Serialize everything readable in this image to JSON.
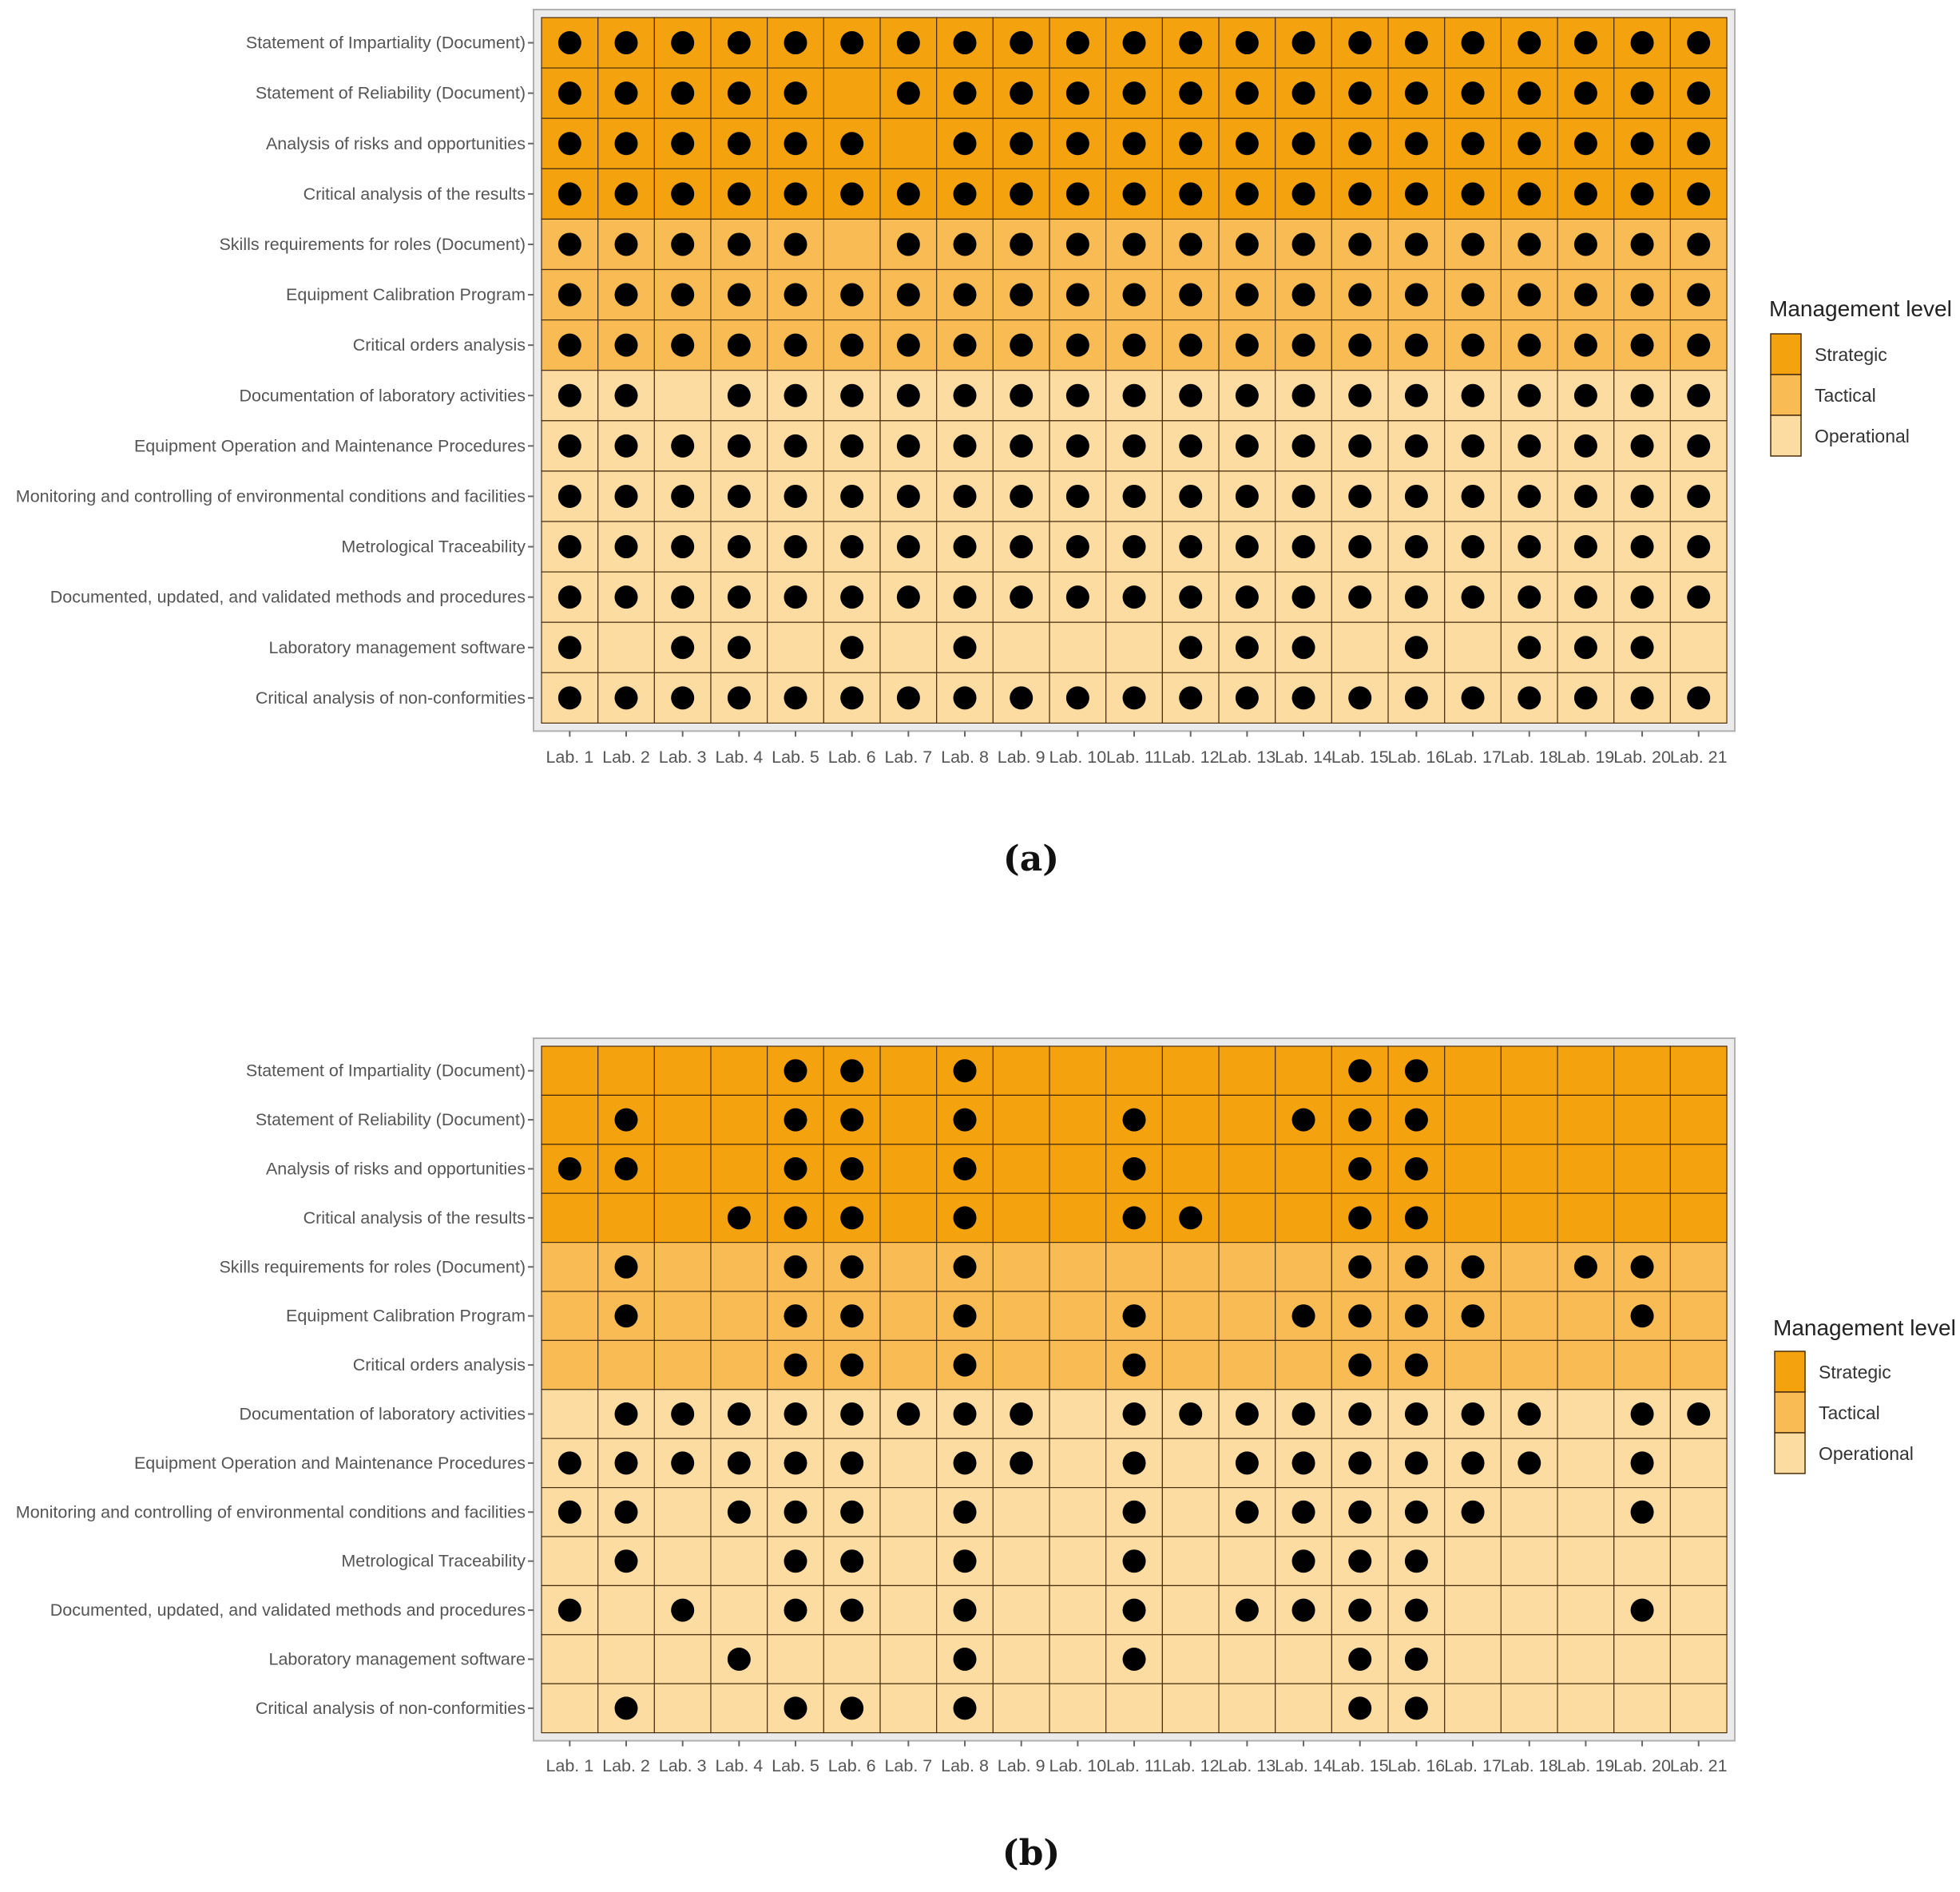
{
  "level_colors": {
    "Strategic": "#f5a20f",
    "Tactical": "#f9bb54",
    "Operational": "#fddca2"
  },
  "dot_color": "#000000",
  "chart_data": [
    {
      "type": "heatmap",
      "panel_label": "(a)",
      "legend": {
        "title": "Management level",
        "entries": [
          "Strategic",
          "Tactical",
          "Operational"
        ],
        "position": "right"
      },
      "categories": [
        "Lab. 1",
        "Lab. 2",
        "Lab. 3",
        "Lab. 4",
        "Lab. 5",
        "Lab. 6",
        "Lab. 7",
        "Lab. 8",
        "Lab. 9",
        "Lab. 10",
        "Lab. 11",
        "Lab. 12",
        "Lab. 13",
        "Lab. 14",
        "Lab. 15",
        "Lab. 16",
        "Lab. 17",
        "Lab. 18",
        "Lab. 19",
        "Lab. 20",
        "Lab. 21"
      ],
      "rows": [
        {
          "label": "Statement of Impartiality (Document)",
          "level": "Strategic",
          "dots": [
            1,
            1,
            1,
            1,
            1,
            1,
            1,
            1,
            1,
            1,
            1,
            1,
            1,
            1,
            1,
            1,
            1,
            1,
            1,
            1,
            1
          ]
        },
        {
          "label": "Statement of Reliability (Document)",
          "level": "Strategic",
          "dots": [
            1,
            1,
            1,
            1,
            1,
            0,
            1,
            1,
            1,
            1,
            1,
            1,
            1,
            1,
            1,
            1,
            1,
            1,
            1,
            1,
            1
          ]
        },
        {
          "label": "Analysis of risks and opportunities",
          "level": "Strategic",
          "dots": [
            1,
            1,
            1,
            1,
            1,
            1,
            0,
            1,
            1,
            1,
            1,
            1,
            1,
            1,
            1,
            1,
            1,
            1,
            1,
            1,
            1
          ]
        },
        {
          "label": "Critical analysis of the results",
          "level": "Strategic",
          "dots": [
            1,
            1,
            1,
            1,
            1,
            1,
            1,
            1,
            1,
            1,
            1,
            1,
            1,
            1,
            1,
            1,
            1,
            1,
            1,
            1,
            1
          ]
        },
        {
          "label": "Skills requirements for roles (Document)",
          "level": "Tactical",
          "dots": [
            1,
            1,
            1,
            1,
            1,
            0,
            1,
            1,
            1,
            1,
            1,
            1,
            1,
            1,
            1,
            1,
            1,
            1,
            1,
            1,
            1
          ]
        },
        {
          "label": "Equipment Calibration Program",
          "level": "Tactical",
          "dots": [
            1,
            1,
            1,
            1,
            1,
            1,
            1,
            1,
            1,
            1,
            1,
            1,
            1,
            1,
            1,
            1,
            1,
            1,
            1,
            1,
            1
          ]
        },
        {
          "label": "Critical orders analysis",
          "level": "Tactical",
          "dots": [
            1,
            1,
            1,
            1,
            1,
            1,
            1,
            1,
            1,
            1,
            1,
            1,
            1,
            1,
            1,
            1,
            1,
            1,
            1,
            1,
            1
          ]
        },
        {
          "label": "Documentation of laboratory activities",
          "level": "Operational",
          "dots": [
            1,
            1,
            0,
            1,
            1,
            1,
            1,
            1,
            1,
            1,
            1,
            1,
            1,
            1,
            1,
            1,
            1,
            1,
            1,
            1,
            1
          ]
        },
        {
          "label": "Equipment Operation and Maintenance Procedures",
          "level": "Operational",
          "dots": [
            1,
            1,
            1,
            1,
            1,
            1,
            1,
            1,
            1,
            1,
            1,
            1,
            1,
            1,
            1,
            1,
            1,
            1,
            1,
            1,
            1
          ]
        },
        {
          "label": "Monitoring and controlling of environmental conditions and facilities",
          "level": "Operational",
          "dots": [
            1,
            1,
            1,
            1,
            1,
            1,
            1,
            1,
            1,
            1,
            1,
            1,
            1,
            1,
            1,
            1,
            1,
            1,
            1,
            1,
            1
          ]
        },
        {
          "label": "Metrological Traceability",
          "level": "Operational",
          "dots": [
            1,
            1,
            1,
            1,
            1,
            1,
            1,
            1,
            1,
            1,
            1,
            1,
            1,
            1,
            1,
            1,
            1,
            1,
            1,
            1,
            1
          ]
        },
        {
          "label": "Documented, updated, and validated methods and procedures",
          "level": "Operational",
          "dots": [
            1,
            1,
            1,
            1,
            1,
            1,
            1,
            1,
            1,
            1,
            1,
            1,
            1,
            1,
            1,
            1,
            1,
            1,
            1,
            1,
            1
          ]
        },
        {
          "label": "Laboratory management software",
          "level": "Operational",
          "dots": [
            1,
            0,
            1,
            1,
            0,
            1,
            0,
            1,
            0,
            0,
            0,
            1,
            1,
            1,
            0,
            1,
            0,
            1,
            1,
            1,
            0
          ]
        },
        {
          "label": "Critical analysis of non-conformities",
          "level": "Operational",
          "dots": [
            1,
            1,
            1,
            1,
            1,
            1,
            1,
            1,
            1,
            1,
            1,
            1,
            1,
            1,
            1,
            1,
            1,
            1,
            1,
            1,
            1
          ]
        }
      ]
    },
    {
      "type": "heatmap",
      "panel_label": "(b)",
      "legend": {
        "title": "Management level",
        "entries": [
          "Strategic",
          "Tactical",
          "Operational"
        ],
        "position": "right"
      },
      "categories": [
        "Lab. 1",
        "Lab. 2",
        "Lab. 3",
        "Lab. 4",
        "Lab. 5",
        "Lab. 6",
        "Lab. 7",
        "Lab. 8",
        "Lab. 9",
        "Lab. 10",
        "Lab. 11",
        "Lab. 12",
        "Lab. 13",
        "Lab. 14",
        "Lab. 15",
        "Lab. 16",
        "Lab. 17",
        "Lab. 18",
        "Lab. 19",
        "Lab. 20",
        "Lab. 21"
      ],
      "rows": [
        {
          "label": "Statement of Impartiality (Document)",
          "level": "Strategic",
          "dots": [
            0,
            0,
            0,
            0,
            1,
            1,
            0,
            1,
            0,
            0,
            0,
            0,
            0,
            0,
            1,
            1,
            0,
            0,
            0,
            0,
            0
          ]
        },
        {
          "label": "Statement of Reliability (Document)",
          "level": "Strategic",
          "dots": [
            0,
            1,
            0,
            0,
            1,
            1,
            0,
            1,
            0,
            0,
            1,
            0,
            0,
            1,
            1,
            1,
            0,
            0,
            0,
            0,
            0
          ]
        },
        {
          "label": "Analysis of risks and opportunities",
          "level": "Strategic",
          "dots": [
            1,
            1,
            0,
            0,
            1,
            1,
            0,
            1,
            0,
            0,
            1,
            0,
            0,
            0,
            1,
            1,
            0,
            0,
            0,
            0,
            0
          ]
        },
        {
          "label": "Critical analysis of the results",
          "level": "Strategic",
          "dots": [
            0,
            0,
            0,
            1,
            1,
            1,
            0,
            1,
            0,
            0,
            1,
            1,
            0,
            0,
            1,
            1,
            0,
            0,
            0,
            0,
            0
          ]
        },
        {
          "label": "Skills requirements for roles (Document)",
          "level": "Tactical",
          "dots": [
            0,
            1,
            0,
            0,
            1,
            1,
            0,
            1,
            0,
            0,
            0,
            0,
            0,
            0,
            1,
            1,
            1,
            0,
            1,
            1,
            0
          ]
        },
        {
          "label": "Equipment Calibration Program",
          "level": "Tactical",
          "dots": [
            0,
            1,
            0,
            0,
            1,
            1,
            0,
            1,
            0,
            0,
            1,
            0,
            0,
            1,
            1,
            1,
            1,
            0,
            0,
            1,
            0
          ]
        },
        {
          "label": "Critical orders analysis",
          "level": "Tactical",
          "dots": [
            0,
            0,
            0,
            0,
            1,
            1,
            0,
            1,
            0,
            0,
            1,
            0,
            0,
            0,
            1,
            1,
            0,
            0,
            0,
            0,
            0
          ]
        },
        {
          "label": "Documentation of laboratory activities",
          "level": "Operational",
          "dots": [
            0,
            1,
            1,
            1,
            1,
            1,
            1,
            1,
            1,
            0,
            1,
            1,
            1,
            1,
            1,
            1,
            1,
            1,
            0,
            1,
            1
          ]
        },
        {
          "label": "Equipment Operation and Maintenance Procedures",
          "level": "Operational",
          "dots": [
            1,
            1,
            1,
            1,
            1,
            1,
            0,
            1,
            1,
            0,
            1,
            0,
            1,
            1,
            1,
            1,
            1,
            1,
            0,
            1,
            0
          ]
        },
        {
          "label": "Monitoring and controlling of environmental conditions and facilities",
          "level": "Operational",
          "dots": [
            1,
            1,
            0,
            1,
            1,
            1,
            0,
            1,
            0,
            0,
            1,
            0,
            1,
            1,
            1,
            1,
            1,
            0,
            0,
            1,
            0
          ]
        },
        {
          "label": "Metrological Traceability",
          "level": "Operational",
          "dots": [
            0,
            1,
            0,
            0,
            1,
            1,
            0,
            1,
            0,
            0,
            1,
            0,
            0,
            1,
            1,
            1,
            0,
            0,
            0,
            0,
            0
          ]
        },
        {
          "label": "Documented, updated, and validated methods and procedures",
          "level": "Operational",
          "dots": [
            1,
            0,
            1,
            0,
            1,
            1,
            0,
            1,
            0,
            0,
            1,
            0,
            1,
            1,
            1,
            1,
            0,
            0,
            0,
            1,
            0
          ]
        },
        {
          "label": "Laboratory management software",
          "level": "Operational",
          "dots": [
            0,
            0,
            0,
            1,
            0,
            0,
            0,
            1,
            0,
            0,
            1,
            0,
            0,
            0,
            1,
            1,
            0,
            0,
            0,
            0,
            0
          ]
        },
        {
          "label": "Critical analysis of non-conformities",
          "level": "Operational",
          "dots": [
            0,
            1,
            0,
            0,
            1,
            1,
            0,
            1,
            0,
            0,
            0,
            0,
            0,
            0,
            1,
            1,
            0,
            0,
            0,
            0,
            0
          ]
        }
      ]
    }
  ]
}
